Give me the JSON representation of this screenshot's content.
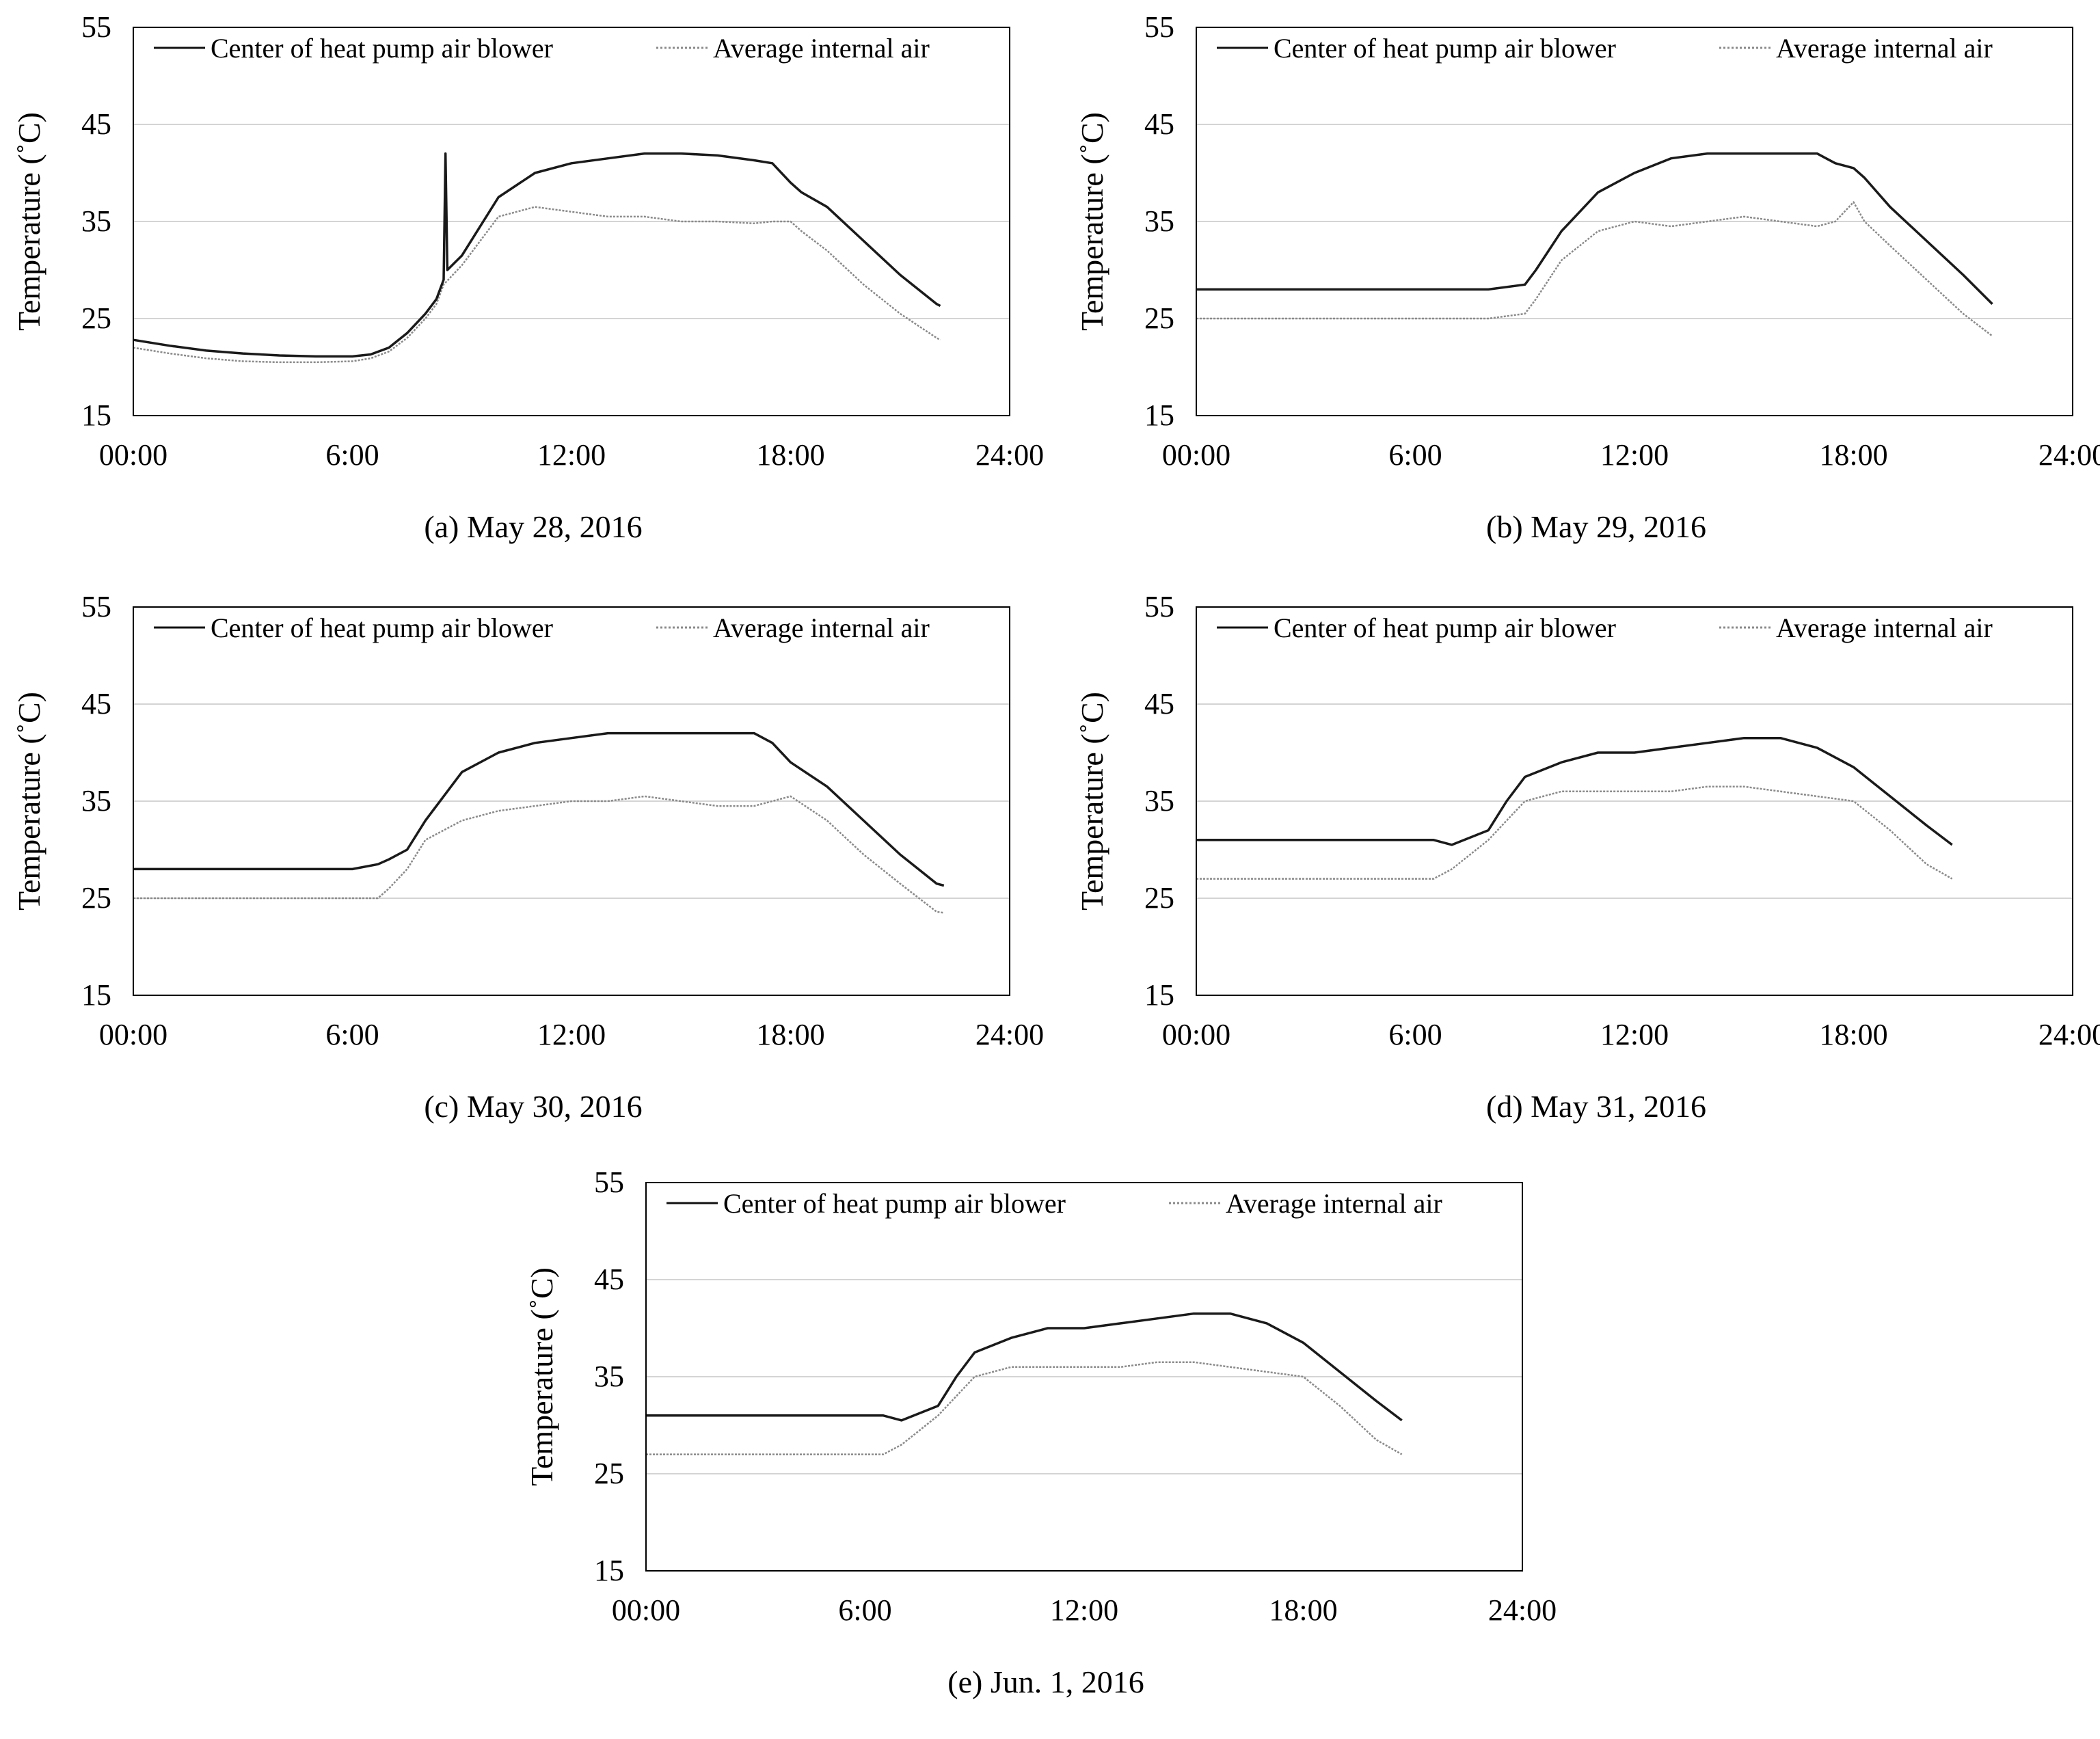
{
  "common": {
    "ylabel": "Temperature (˚C)",
    "ylim": [
      15,
      55
    ],
    "yticks": [
      15,
      25,
      35,
      45,
      55
    ],
    "xlim": [
      0,
      24
    ],
    "xtick_values": [
      0,
      6,
      12,
      18,
      24
    ],
    "xtick_labels": [
      "00:00",
      "6:00",
      "12:00",
      "18:00",
      "24:00"
    ],
    "legend": [
      "Center of heat pump air blower",
      "Average internal air"
    ],
    "gridlines": [
      25,
      35,
      45
    ]
  },
  "chart_data": [
    {
      "id": "a",
      "caption": "(a) May 28, 2016",
      "type": "line",
      "title": "",
      "xlabel": "",
      "ylabel": "Temperature (˚C)",
      "legend": [
        "Center of heat pump air blower",
        "Average internal air"
      ],
      "series": [
        {
          "name": "Center of heat pump air blower",
          "style": "solid",
          "color": "#1a1a1a",
          "x": [
            0,
            1,
            2,
            3,
            4,
            5,
            6,
            6.5,
            7,
            7.5,
            8,
            8.3,
            8.5,
            8.55,
            8.6,
            9,
            9.5,
            10,
            11,
            12,
            13,
            14,
            15,
            16,
            17,
            17.5,
            18,
            18.3,
            19,
            20,
            21,
            22,
            22.1
          ],
          "y": [
            22.8,
            22.2,
            21.7,
            21.4,
            21.2,
            21.1,
            21.1,
            21.3,
            22.0,
            23.5,
            25.5,
            27.0,
            29.0,
            42.0,
            30.0,
            31.5,
            34.5,
            37.5,
            40.0,
            41.0,
            41.5,
            42.0,
            42.0,
            41.8,
            41.3,
            41.0,
            39.0,
            38.0,
            36.5,
            33.0,
            29.5,
            26.5,
            26.3
          ]
        },
        {
          "name": "Average internal air",
          "style": "dotted",
          "color": "#8a8a8a",
          "x": [
            0,
            1,
            2,
            3,
            4,
            5,
            6,
            6.5,
            7,
            7.5,
            8,
            8.3,
            8.5,
            9,
            9.5,
            10,
            11,
            12,
            13,
            14,
            15,
            16,
            17,
            17.5,
            18,
            18.3,
            19,
            20,
            21,
            22,
            22.1
          ],
          "y": [
            22.0,
            21.4,
            20.9,
            20.6,
            20.5,
            20.5,
            20.6,
            20.9,
            21.6,
            23.0,
            25.0,
            26.5,
            28.5,
            30.5,
            33.0,
            35.5,
            36.5,
            36.0,
            35.5,
            35.5,
            35.0,
            35.0,
            34.8,
            35.0,
            35.0,
            34.0,
            32.0,
            28.5,
            25.5,
            23.0,
            22.8
          ]
        }
      ]
    },
    {
      "id": "b",
      "caption": "(b) May 29, 2016",
      "type": "line",
      "title": "",
      "xlabel": "",
      "ylabel": "Temperature (˚C)",
      "legend": [
        "Center of heat pump air blower",
        "Average internal air"
      ],
      "series": [
        {
          "name": "Center of heat pump air blower",
          "style": "solid",
          "color": "#1a1a1a",
          "x": [
            0,
            2,
            4,
            6,
            8,
            9,
            9.3,
            10,
            11,
            12,
            13,
            14,
            15,
            16,
            17,
            17.5,
            18,
            18.3,
            19,
            20,
            21,
            21.8
          ],
          "y": [
            28.0,
            28.0,
            28.0,
            28.0,
            28.0,
            28.5,
            30.0,
            34.0,
            38.0,
            40.0,
            41.5,
            42.0,
            42.0,
            42.0,
            42.0,
            41.0,
            40.5,
            39.5,
            36.5,
            33.0,
            29.5,
            26.5
          ]
        },
        {
          "name": "Average internal air",
          "style": "dotted",
          "color": "#8a8a8a",
          "x": [
            0,
            2,
            4,
            6,
            8,
            9,
            9.3,
            10,
            11,
            12,
            13,
            14,
            15,
            16,
            17,
            17.5,
            18,
            18.3,
            19,
            20,
            21,
            21.8
          ],
          "y": [
            25.0,
            25.0,
            25.0,
            25.0,
            25.0,
            25.5,
            27.0,
            31.0,
            34.0,
            35.0,
            34.5,
            35.0,
            35.5,
            35.0,
            34.5,
            35.0,
            37.0,
            35.0,
            32.5,
            29.0,
            25.5,
            23.2
          ]
        }
      ]
    },
    {
      "id": "c",
      "caption": "(c) May 30, 2016",
      "type": "line",
      "title": "",
      "xlabel": "",
      "ylabel": "Temperature (˚C)",
      "legend": [
        "Center of heat pump air blower",
        "Average internal air"
      ],
      "series": [
        {
          "name": "Center of heat pump air blower",
          "style": "solid",
          "color": "#1a1a1a",
          "x": [
            0,
            2,
            4,
            6,
            6.7,
            7,
            7.5,
            8,
            9,
            10,
            11,
            12,
            13,
            14,
            15,
            16,
            17,
            17.5,
            18,
            19,
            20,
            21,
            22,
            22.2
          ],
          "y": [
            28.0,
            28.0,
            28.0,
            28.0,
            28.5,
            29.0,
            30.0,
            33.0,
            38.0,
            40.0,
            41.0,
            41.5,
            42.0,
            42.0,
            42.0,
            42.0,
            42.0,
            41.0,
            39.0,
            36.5,
            33.0,
            29.5,
            26.5,
            26.3
          ]
        },
        {
          "name": "Average internal air",
          "style": "dotted",
          "color": "#8a8a8a",
          "x": [
            0,
            2,
            4,
            6,
            6.7,
            7,
            7.5,
            8,
            9,
            10,
            11,
            12,
            13,
            14,
            15,
            16,
            17,
            17.5,
            18,
            19,
            20,
            21,
            22,
            22.2
          ],
          "y": [
            25.0,
            25.0,
            25.0,
            25.0,
            25.0,
            26.0,
            28.0,
            31.0,
            33.0,
            34.0,
            34.5,
            35.0,
            35.0,
            35.5,
            35.0,
            34.5,
            34.5,
            35.0,
            35.5,
            33.0,
            29.5,
            26.5,
            23.6,
            23.5
          ]
        }
      ]
    },
    {
      "id": "d",
      "caption": "(d) May 31, 2016",
      "type": "line",
      "title": "",
      "xlabel": "",
      "ylabel": "Temperature (˚C)",
      "legend": [
        "Center of heat pump air blower",
        "Average internal air"
      ],
      "series": [
        {
          "name": "Center of heat pump air blower",
          "style": "solid",
          "color": "#1a1a1a",
          "x": [
            0,
            2,
            4,
            6,
            6.5,
            7,
            8,
            8.5,
            9,
            10,
            11,
            12,
            13,
            14,
            15,
            16,
            17,
            18,
            19,
            20,
            20.7
          ],
          "y": [
            31.0,
            31.0,
            31.0,
            31.0,
            31.0,
            30.5,
            32.0,
            35.0,
            37.5,
            39.0,
            40.0,
            40.0,
            40.5,
            41.0,
            41.5,
            41.5,
            40.5,
            38.5,
            35.5,
            32.5,
            30.5
          ]
        },
        {
          "name": "Average internal air",
          "style": "dotted",
          "color": "#8a8a8a",
          "x": [
            0,
            2,
            4,
            6,
            6.5,
            7,
            8,
            8.5,
            9,
            10,
            11,
            12,
            13,
            14,
            15,
            16,
            17,
            18,
            19,
            20,
            20.7
          ],
          "y": [
            27.0,
            27.0,
            27.0,
            27.0,
            27.0,
            28.0,
            31.0,
            33.0,
            35.0,
            36.0,
            36.0,
            36.0,
            36.0,
            36.5,
            36.5,
            36.0,
            35.5,
            35.0,
            32.0,
            28.5,
            27.0
          ]
        }
      ]
    },
    {
      "id": "e",
      "caption": "(e) Jun. 1, 2016",
      "type": "line",
      "title": "",
      "xlabel": "",
      "ylabel": "Temperature (˚C)",
      "legend": [
        "Center of heat pump air blower",
        "Average internal air"
      ],
      "series": [
        {
          "name": "Center of heat pump air blower",
          "style": "solid",
          "color": "#1a1a1a",
          "x": [
            0,
            2,
            4,
            6,
            6.5,
            7,
            8,
            8.5,
            9,
            10,
            11,
            12,
            13,
            14,
            15,
            16,
            17,
            18,
            19,
            20,
            20.7
          ],
          "y": [
            31.0,
            31.0,
            31.0,
            31.0,
            31.0,
            30.5,
            32.0,
            35.0,
            37.5,
            39.0,
            40.0,
            40.0,
            40.5,
            41.0,
            41.5,
            41.5,
            40.5,
            38.5,
            35.5,
            32.5,
            30.5
          ]
        },
        {
          "name": "Average internal air",
          "style": "dotted",
          "color": "#8a8a8a",
          "x": [
            0,
            2,
            4,
            6,
            6.5,
            7,
            8,
            8.5,
            9,
            10,
            11,
            12,
            13,
            14,
            15,
            16,
            17,
            18,
            19,
            20,
            20.7
          ],
          "y": [
            27.0,
            27.0,
            27.0,
            27.0,
            27.0,
            28.0,
            31.0,
            33.0,
            35.0,
            36.0,
            36.0,
            36.0,
            36.0,
            36.5,
            36.5,
            36.0,
            35.5,
            35.0,
            32.0,
            28.5,
            27.0
          ]
        }
      ]
    }
  ]
}
